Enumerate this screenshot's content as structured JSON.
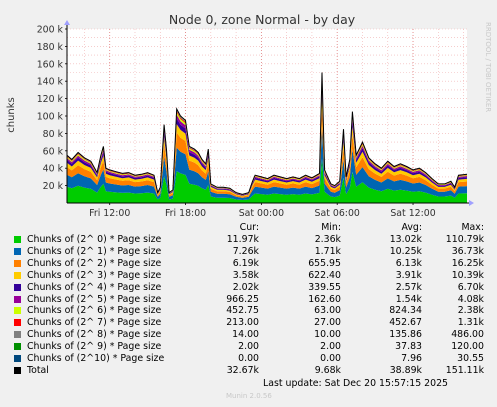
{
  "chart_data": {
    "type": "area",
    "title": "Node 0, zone Normal - by day",
    "ylabel": "chunks",
    "ylim": [
      0,
      200000
    ],
    "y_ticks": [
      "20 k",
      "40 k",
      "60 k",
      "80 k",
      "100 k",
      "120 k",
      "140 k",
      "160 k",
      "180 k",
      "200 k"
    ],
    "y_tick_values": [
      20000,
      40000,
      60000,
      80000,
      100000,
      120000,
      140000,
      160000,
      180000,
      200000
    ],
    "x_ticks": [
      "Fri 12:00",
      "Fri 18:00",
      "Sat 00:00",
      "Sat 06:00",
      "Sat 12:00"
    ],
    "x_tick_hours": [
      12,
      18,
      24,
      30,
      36
    ],
    "x_range_hours": [
      8.62,
      40.27
    ],
    "grid": true,
    "stacked": true,
    "watermark": "RRDTOOL / TOBI OETIKER",
    "series": [
      {
        "name": "Chunks of (2^ 0) * Page size",
        "color": "#00cc00",
        "cur": "11.97k",
        "min": "2.36k",
        "avg": "13.02k",
        "max": "110.79k"
      },
      {
        "name": "Chunks of (2^ 1) * Page size",
        "color": "#0066b3",
        "cur": "7.26k",
        "min": "1.71k",
        "avg": "10.25k",
        "max": "36.73k"
      },
      {
        "name": "Chunks of (2^ 2) * Page size",
        "color": "#ff8000",
        "cur": "6.19k",
        "min": "655.95",
        "avg": "6.13k",
        "max": "16.25k"
      },
      {
        "name": "Chunks of (2^ 3) * Page size",
        "color": "#ffcc00",
        "cur": "3.58k",
        "min": "622.40",
        "avg": "3.91k",
        "max": "10.39k"
      },
      {
        "name": "Chunks of (2^ 4) * Page size",
        "color": "#330099",
        "cur": "2.02k",
        "min": "339.55",
        "avg": "2.57k",
        "max": "6.70k"
      },
      {
        "name": "Chunks of (2^ 5) * Page size",
        "color": "#990099",
        "cur": "966.25",
        "min": "162.60",
        "avg": "1.54k",
        "max": "4.08k"
      },
      {
        "name": "Chunks of (2^ 6) * Page size",
        "color": "#ccff00",
        "cur": "452.75",
        "min": "63.00",
        "avg": "824.34",
        "max": "2.38k"
      },
      {
        "name": "Chunks of (2^ 7) * Page size",
        "color": "#ff0000",
        "cur": "213.00",
        "min": "27.00",
        "avg": "452.67",
        "max": "1.31k"
      },
      {
        "name": "Chunks of (2^ 8) * Page size",
        "color": "#808080",
        "cur": "14.00",
        "min": "10.00",
        "avg": "135.86",
        "max": "486.00"
      },
      {
        "name": "Chunks of (2^ 9) * Page size",
        "color": "#008f00",
        "cur": "2.00",
        "min": "2.00",
        "avg": "37.83",
        "max": "120.00"
      },
      {
        "name": "Chunks of (2^10) * Page size",
        "color": "#00487d",
        "cur": "0.00",
        "min": "0.00",
        "avg": "7.96",
        "max": "30.55"
      }
    ],
    "total": {
      "name": "Total",
      "color": "#000000",
      "cur": "32.67k",
      "min": "9.68k",
      "avg": "38.89k",
      "max": "151.11k"
    },
    "total_points": [
      [
        8.62,
        55000
      ],
      [
        9.0,
        50000
      ],
      [
        9.5,
        58000
      ],
      [
        10.0,
        52000
      ],
      [
        10.5,
        48000
      ],
      [
        11.0,
        35000
      ],
      [
        11.3,
        55000
      ],
      [
        11.5,
        65000
      ],
      [
        11.7,
        40000
      ],
      [
        12.0,
        38000
      ],
      [
        12.5,
        36000
      ],
      [
        13.0,
        34000
      ],
      [
        13.5,
        35000
      ],
      [
        14.0,
        32000
      ],
      [
        14.5,
        33000
      ],
      [
        15.0,
        35000
      ],
      [
        15.5,
        32000
      ],
      [
        15.8,
        12000
      ],
      [
        16.0,
        18000
      ],
      [
        16.3,
        90000
      ],
      [
        16.5,
        60000
      ],
      [
        16.7,
        12000
      ],
      [
        17.0,
        15000
      ],
      [
        17.3,
        108000
      ],
      [
        17.6,
        100000
      ],
      [
        18.0,
        95000
      ],
      [
        18.3,
        65000
      ],
      [
        18.7,
        62000
      ],
      [
        19.0,
        58000
      ],
      [
        19.3,
        50000
      ],
      [
        19.6,
        45000
      ],
      [
        19.8,
        62000
      ],
      [
        20.0,
        22000
      ],
      [
        20.5,
        18000
      ],
      [
        21.0,
        18000
      ],
      [
        21.5,
        17000
      ],
      [
        22.0,
        12000
      ],
      [
        22.5,
        10000
      ],
      [
        23.0,
        12000
      ],
      [
        23.3,
        25000
      ],
      [
        23.5,
        32000
      ],
      [
        24.0,
        30000
      ],
      [
        24.5,
        28000
      ],
      [
        25.0,
        32000
      ],
      [
        25.5,
        30000
      ],
      [
        26.0,
        28000
      ],
      [
        26.5,
        30000
      ],
      [
        27.0,
        28000
      ],
      [
        27.5,
        32000
      ],
      [
        28.0,
        29000
      ],
      [
        28.6,
        34000
      ],
      [
        28.8,
        150000
      ],
      [
        29.0,
        38000
      ],
      [
        29.3,
        28000
      ],
      [
        29.5,
        22000
      ],
      [
        29.8,
        20000
      ],
      [
        30.2,
        25000
      ],
      [
        30.5,
        85000
      ],
      [
        30.7,
        30000
      ],
      [
        31.0,
        50000
      ],
      [
        31.2,
        105000
      ],
      [
        31.5,
        55000
      ],
      [
        32.0,
        70000
      ],
      [
        32.5,
        52000
      ],
      [
        33.0,
        45000
      ],
      [
        33.5,
        40000
      ],
      [
        34.0,
        48000
      ],
      [
        34.5,
        42000
      ],
      [
        35.0,
        45000
      ],
      [
        35.5,
        42000
      ],
      [
        36.0,
        38000
      ],
      [
        36.5,
        40000
      ],
      [
        37.0,
        35000
      ],
      [
        37.5,
        28000
      ],
      [
        38.0,
        22000
      ],
      [
        38.5,
        22000
      ],
      [
        39.0,
        25000
      ],
      [
        39.3,
        18000
      ],
      [
        39.6,
        32000
      ],
      [
        40.27,
        33000
      ]
    ],
    "series_shares": [
      0.34,
      0.25,
      0.16,
      0.09,
      0.06,
      0.04,
      0.025,
      0.015,
      0.006,
      0.002,
      0.002
    ]
  },
  "legend": {
    "col_cur": "Cur:",
    "col_min": "Min:",
    "col_avg": "Avg:",
    "col_max": "Max:"
  },
  "footer": {
    "last_update": "Last update: Sat Dec 20 15:57:15 2025",
    "munin": "Munin 2.0.56"
  }
}
